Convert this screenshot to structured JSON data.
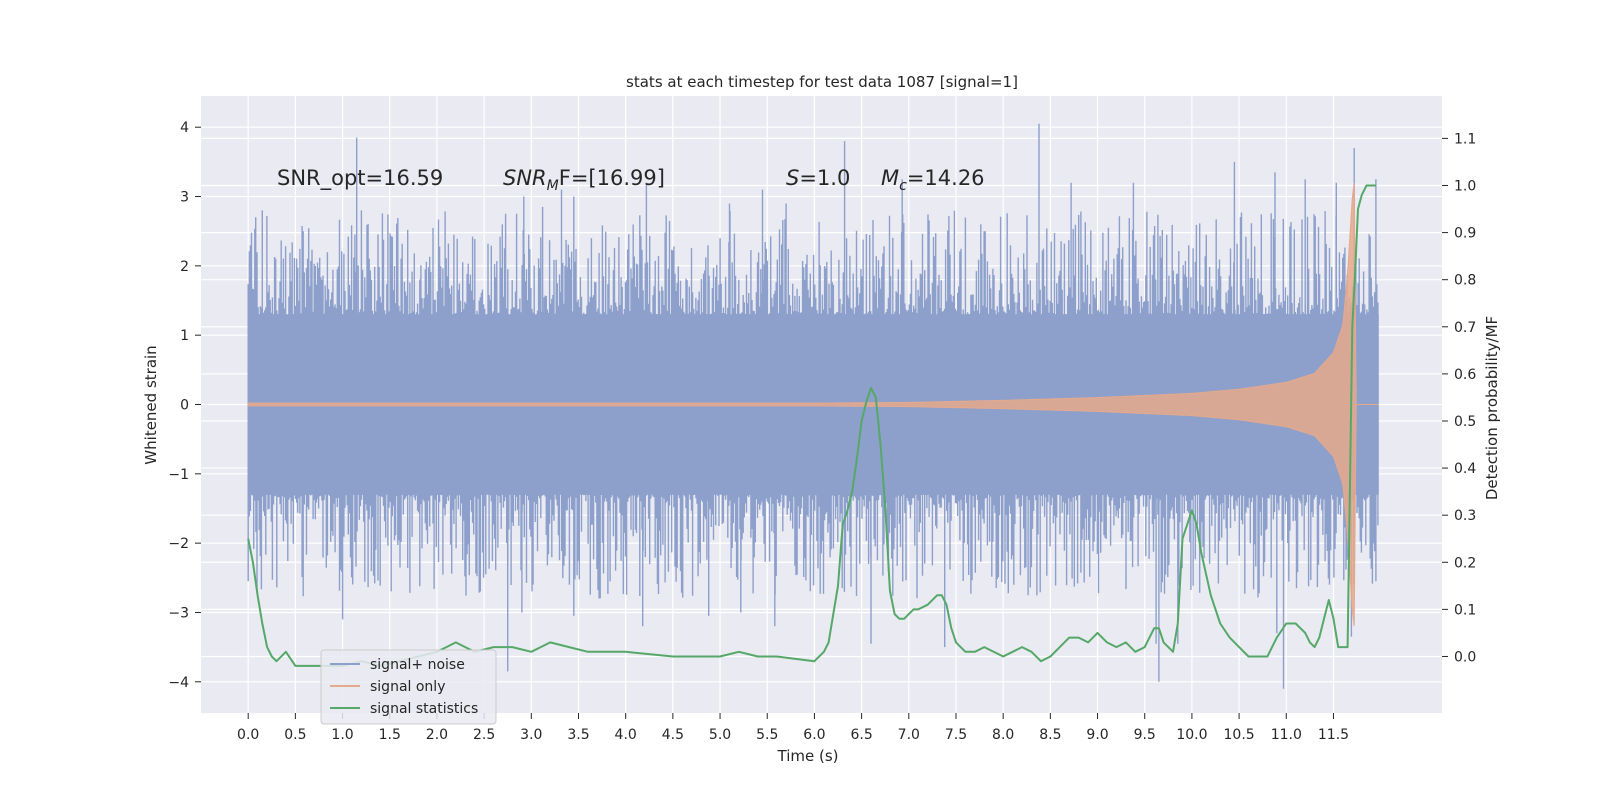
{
  "chart_data": {
    "type": "line",
    "title": "stats at each timestep for test data 1087 [signal=1]",
    "xlabel": "Time (s)",
    "ylabel_left": "Whitened strain",
    "ylabel_right": "Detection probability/MF",
    "xlim": [
      -0.5,
      12.65
    ],
    "ylim_left": [
      -4.45,
      4.45
    ],
    "ylim_right": [
      -0.12,
      1.19
    ],
    "x_ticks": [
      "0.0",
      "0.5",
      "1.0",
      "1.5",
      "2.0",
      "2.5",
      "3.0",
      "3.5",
      "4.0",
      "4.5",
      "5.0",
      "5.5",
      "6.0",
      "6.5",
      "7.0",
      "7.5",
      "8.0",
      "8.5",
      "9.0",
      "9.5",
      "10.0",
      "10.5",
      "11.0",
      "11.5"
    ],
    "y_ticks_left": [
      "4",
      "3",
      "2",
      "1",
      "0",
      "−1",
      "−2",
      "−3",
      "−4"
    ],
    "y_ticks_right": [
      "1.1",
      "1.0",
      "0.9",
      "0.8",
      "0.7",
      "0.6",
      "0.5",
      "0.4",
      "0.3",
      "0.2",
      "0.1",
      "0.0"
    ],
    "grid": true,
    "background": "#eaeaf2",
    "legend_position": "lower-left",
    "legend": [
      {
        "label": "signal+ noise",
        "color": "#8da0cb"
      },
      {
        "label": "signal only",
        "color": "#e5a98c"
      },
      {
        "label": "signal statistics",
        "color": "#55a868"
      }
    ],
    "annotations": {
      "snr_opt": "SNR_opt=16.59",
      "snr_mf_main": "SNR",
      "snr_mf_sub": "M",
      "snr_mf_rest": "F=[16.99]",
      "s_var": "S",
      "s_rest": "=1.0",
      "mc_main": "M",
      "mc_sub": "c",
      "mc_rest": "=14.26"
    },
    "series": [
      {
        "name": "signal+ noise",
        "axis": "left",
        "x_range": [
          0.0,
          11.98
        ],
        "core_band": [
          -1.3,
          1.3
        ],
        "typical_peaks": [
          -2.6,
          2.6
        ],
        "outliers_up": [
          [
            0.08,
            2.7
          ],
          [
            0.15,
            2.8
          ],
          [
            1.15,
            3.85
          ],
          [
            1.2,
            2.8
          ],
          [
            2.92,
            3.0
          ],
          [
            3.12,
            2.85
          ],
          [
            3.32,
            3.1
          ],
          [
            3.45,
            3.0
          ],
          [
            4.22,
            3.2
          ],
          [
            5.1,
            2.9
          ],
          [
            5.45,
            3.1
          ],
          [
            5.7,
            2.9
          ],
          [
            6.32,
            3.8
          ],
          [
            6.93,
            3.25
          ],
          [
            8.38,
            4.05
          ],
          [
            8.72,
            3.2
          ],
          [
            9.38,
            3.2
          ],
          [
            10.45,
            3.5
          ],
          [
            10.88,
            3.35
          ],
          [
            11.2,
            3.25
          ],
          [
            11.53,
            3.2
          ],
          [
            11.72,
            3.7
          ],
          [
            11.95,
            3.25
          ]
        ],
        "outliers_down": [
          [
            0.0,
            -2.55
          ],
          [
            1.0,
            -3.1
          ],
          [
            2.75,
            -3.85
          ],
          [
            2.9,
            -3.0
          ],
          [
            3.45,
            -3.05
          ],
          [
            4.18,
            -3.2
          ],
          [
            4.88,
            -3.05
          ],
          [
            5.22,
            -3.0
          ],
          [
            5.58,
            -3.2
          ],
          [
            6.6,
            -3.45
          ],
          [
            7.38,
            -3.5
          ],
          [
            9.62,
            -3.45
          ],
          [
            9.65,
            -4.0
          ],
          [
            9.85,
            -3.45
          ],
          [
            10.9,
            -3.3
          ],
          [
            10.97,
            -4.1
          ],
          [
            11.69,
            -3.35
          ],
          [
            11.95,
            -2.55
          ]
        ]
      },
      {
        "name": "signal only",
        "axis": "left",
        "x": [
          0.0,
          6.0,
          7.0,
          8.0,
          9.0,
          10.0,
          10.5,
          11.0,
          11.3,
          11.5,
          11.6,
          11.65,
          11.7,
          11.72,
          11.74,
          11.98
        ],
        "amplitude": [
          0.02,
          0.02,
          0.03,
          0.06,
          0.1,
          0.16,
          0.22,
          0.32,
          0.45,
          0.75,
          1.15,
          1.9,
          3.0,
          3.2,
          0.0,
          0.0
        ]
      },
      {
        "name": "signal statistics",
        "axis": "right",
        "x": [
          0.0,
          0.05,
          0.1,
          0.15,
          0.2,
          0.25,
          0.3,
          0.4,
          0.5,
          0.6,
          0.8,
          1.0,
          1.2,
          1.4,
          1.6,
          1.8,
          2.0,
          2.1,
          2.2,
          2.3,
          2.4,
          2.6,
          2.8,
          3.0,
          3.1,
          3.2,
          3.4,
          3.6,
          4.0,
          4.5,
          5.0,
          5.2,
          5.4,
          5.6,
          6.0,
          6.1,
          6.15,
          6.2,
          6.25,
          6.3,
          6.35,
          6.4,
          6.45,
          6.5,
          6.55,
          6.6,
          6.65,
          6.7,
          6.75,
          6.8,
          6.85,
          6.9,
          6.95,
          7.0,
          7.05,
          7.1,
          7.2,
          7.3,
          7.35,
          7.4,
          7.45,
          7.5,
          7.6,
          7.7,
          7.8,
          8.0,
          8.1,
          8.2,
          8.3,
          8.4,
          8.5,
          8.6,
          8.7,
          8.8,
          8.9,
          9.0,
          9.1,
          9.2,
          9.3,
          9.4,
          9.5,
          9.6,
          9.65,
          9.7,
          9.75,
          9.8,
          9.85,
          9.9,
          9.95,
          10.0,
          10.05,
          10.1,
          10.2,
          10.3,
          10.4,
          10.5,
          10.6,
          10.7,
          10.8,
          10.9,
          11.0,
          11.05,
          11.1,
          11.15,
          11.2,
          11.25,
          11.3,
          11.35,
          11.4,
          11.45,
          11.5,
          11.55,
          11.6,
          11.65,
          11.7,
          11.73,
          11.76,
          11.8,
          11.85,
          11.9,
          11.95
        ],
        "values": [
          0.25,
          0.2,
          0.13,
          0.07,
          0.02,
          0.0,
          -0.01,
          0.01,
          -0.02,
          -0.02,
          -0.02,
          -0.02,
          -0.01,
          -0.02,
          -0.01,
          0.0,
          0.01,
          0.02,
          0.03,
          0.02,
          0.01,
          0.02,
          0.02,
          0.01,
          0.02,
          0.03,
          0.02,
          0.01,
          0.01,
          0.0,
          0.0,
          0.01,
          0.0,
          0.0,
          -0.01,
          0.01,
          0.03,
          0.09,
          0.15,
          0.28,
          0.31,
          0.35,
          0.42,
          0.5,
          0.54,
          0.57,
          0.55,
          0.45,
          0.32,
          0.14,
          0.09,
          0.08,
          0.08,
          0.09,
          0.1,
          0.1,
          0.11,
          0.13,
          0.13,
          0.11,
          0.06,
          0.03,
          0.01,
          0.01,
          0.02,
          0.0,
          0.01,
          0.02,
          0.01,
          -0.01,
          0.0,
          0.02,
          0.04,
          0.04,
          0.03,
          0.05,
          0.03,
          0.02,
          0.03,
          0.01,
          0.02,
          0.06,
          0.06,
          0.03,
          0.02,
          0.01,
          0.07,
          0.25,
          0.28,
          0.31,
          0.28,
          0.22,
          0.13,
          0.07,
          0.04,
          0.02,
          0.0,
          0.0,
          0.0,
          0.04,
          0.07,
          0.07,
          0.07,
          0.06,
          0.05,
          0.03,
          0.02,
          0.04,
          0.08,
          0.12,
          0.08,
          0.02,
          0.02,
          0.02,
          0.7,
          0.82,
          0.95,
          0.98,
          1.0,
          1.0,
          1.0
        ]
      }
    ]
  }
}
